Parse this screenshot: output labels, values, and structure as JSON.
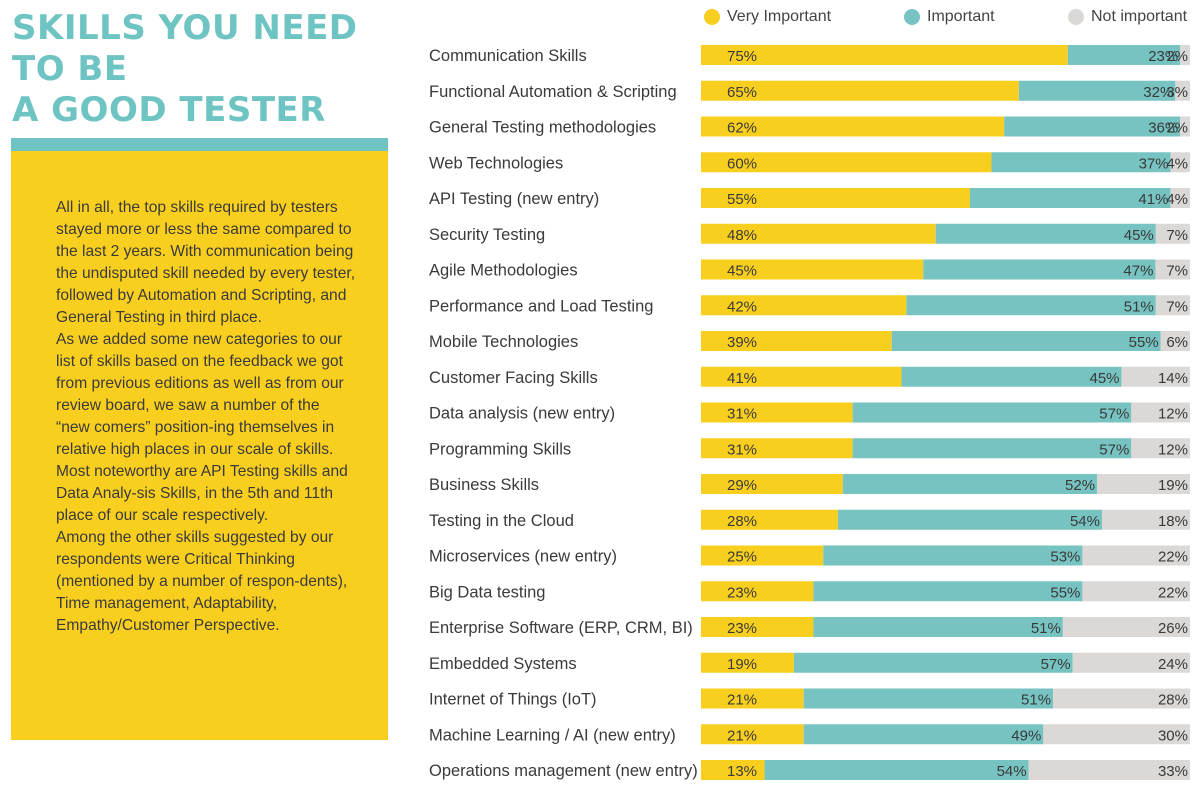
{
  "title_lines": [
    "SKILLS YOU NEED TO BE",
    "A GOOD TESTER"
  ],
  "panel_paragraphs": [
    "All in all, the top skills required by testers stayed more or less the same compared to the last 2 years.  With communication being the undisputed skill needed by every tester, followed by Automation and Scripting, and General Testing in third place.",
    "As we added some new categories to our list of skills based on the feedback we got from previous editions as well as from our review board, we saw a number of the “new comers” position-ing themselves in relative high places in our scale of skills.  Most noteworthy are  API Testing skills and Data Analy-sis Skills, in the 5th and 11th place of our scale respectively.",
    "Among the other skills suggested by our respondents were Critical Thinking (mentioned by a number of respon-dents), Time management, Adaptability, Empathy/Customer Perspective."
  ],
  "colors": {
    "very_important": "#f9cf1f",
    "important": "#76c3c2",
    "not_important": "#dbd8d5",
    "panel": "#f9cf1f",
    "accent": "#6ec4c2",
    "text": "#3a3a3a"
  },
  "chart_data": {
    "type": "bar",
    "orientation": "horizontal",
    "stacked": true,
    "title": "SKILLS YOU NEED TO BE A GOOD TESTER",
    "xlim": [
      0,
      100
    ],
    "legend_position": "top",
    "categories": [
      "Communication Skills",
      "Functional Automation & Scripting",
      "General Testing methodologies",
      "Web Technologies",
      "API Testing (new entry)",
      "Security Testing",
      "Agile Methodologies",
      "Performance and Load Testing",
      "Mobile Technologies",
      "Customer Facing Skills",
      "Data analysis (new entry)",
      "Programming Skills",
      "Business Skills",
      "Testing in the Cloud",
      "Microservices (new entry)",
      "Big Data testing",
      "Enterprise Software (ERP, CRM, BI)",
      "Embedded Systems",
      "Internet of Things (IoT)",
      "Machine Learning / AI (new entry)",
      "Operations management (new entry)"
    ],
    "series": [
      {
        "name": "Very Important",
        "color": "#f9cf1f",
        "values": [
          75,
          65,
          62,
          60,
          55,
          48,
          45,
          42,
          39,
          41,
          31,
          31,
          29,
          28,
          25,
          23,
          23,
          19,
          21,
          21,
          13
        ]
      },
      {
        "name": "Important",
        "color": "#76c3c2",
        "values": [
          23,
          32,
          36,
          37,
          41,
          45,
          47,
          51,
          55,
          45,
          57,
          57,
          52,
          54,
          53,
          55,
          51,
          57,
          51,
          49,
          54
        ]
      },
      {
        "name": "Not important",
        "color": "#dbd8d5",
        "values": [
          2,
          3,
          2,
          4,
          4,
          7,
          7,
          7,
          6,
          14,
          12,
          12,
          19,
          18,
          22,
          22,
          26,
          24,
          28,
          30,
          33
        ]
      }
    ]
  }
}
